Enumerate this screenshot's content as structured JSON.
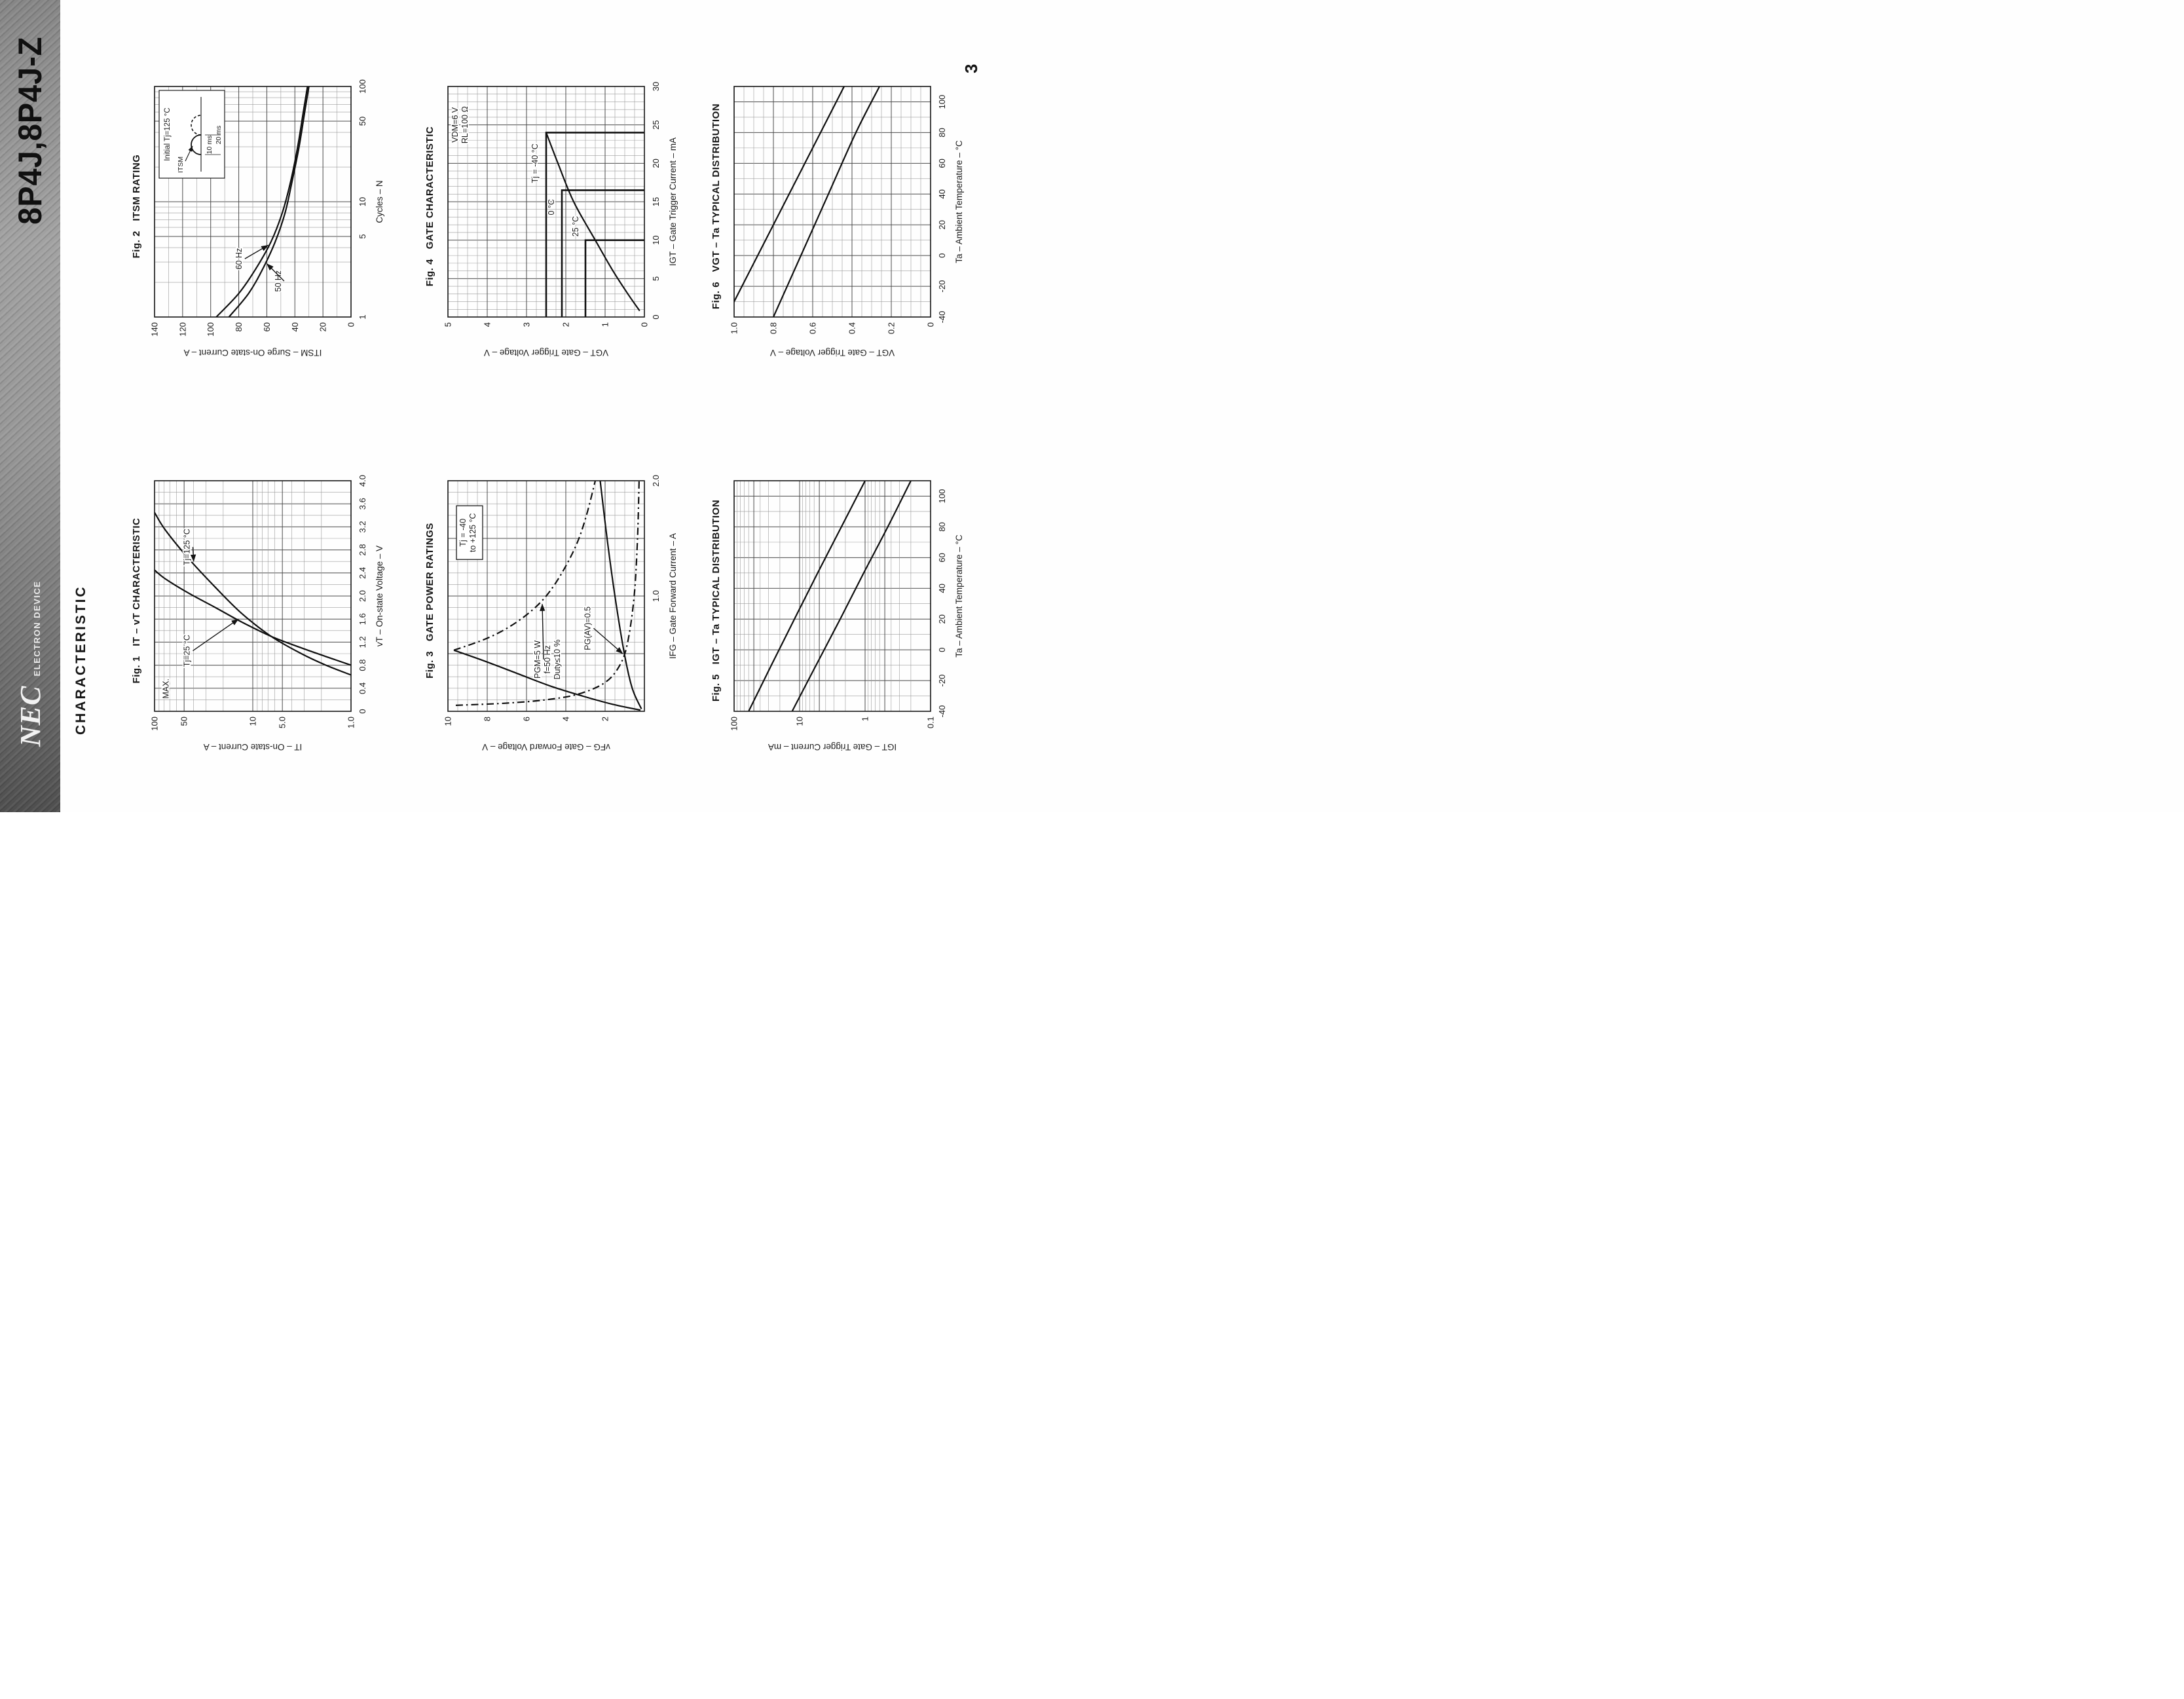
{
  "page": {
    "heading": "CHARACTERISTIC",
    "page_number": "3",
    "background": "#ffffff"
  },
  "header": {
    "brand": "NEC",
    "brand_sub": "ELECTRON DEVICE",
    "part_number": "8P4J,8P4J-Z",
    "strip_color": "#8a8a8a",
    "text_color": "#111111"
  },
  "chart_data": [
    {
      "fig": "Fig. 1",
      "title": "IT – vT CHARACTERISTIC",
      "type": "line",
      "x": {
        "label": "vT – On-state Voltage – V",
        "scale": "linear",
        "min": 0,
        "max": 4.0,
        "major": 0.4,
        "minor": 0.2,
        "ticks": [
          0,
          0.4,
          0.8,
          1.2,
          1.6,
          2.0,
          2.4,
          2.8,
          3.2,
          3.6,
          4.0
        ],
        "tick_labels": [
          "0",
          "0.4",
          "0.8",
          "1.2",
          "1.6",
          "2.0",
          "2.4",
          "2.8",
          "3.2",
          "3.6",
          "4.0"
        ]
      },
      "y": {
        "label": "IT – On-state Current – A",
        "scale": "log",
        "min": 1,
        "max": 100,
        "ticks": [
          1,
          5,
          10,
          50,
          100
        ],
        "tick_labels": [
          "1.0",
          "5.0",
          "10",
          "50",
          "100"
        ]
      },
      "series": [
        {
          "name": "Tj=25°C",
          "style": "solid",
          "points": [
            [
              0.8,
              1.0
            ],
            [
              0.95,
              1.8
            ],
            [
              1.1,
              3.2
            ],
            [
              1.3,
              6.5
            ],
            [
              1.55,
              13
            ],
            [
              1.8,
              24
            ],
            [
              2.05,
              45
            ],
            [
              2.3,
              78
            ],
            [
              2.45,
              100
            ]
          ]
        },
        {
          "name": "Tj=125°C",
          "style": "solid",
          "points": [
            [
              0.63,
              1.0
            ],
            [
              0.8,
              1.8
            ],
            [
              1.0,
              3.2
            ],
            [
              1.3,
              6.5
            ],
            [
              1.7,
              13
            ],
            [
              2.15,
              24
            ],
            [
              2.65,
              45
            ],
            [
              3.15,
              78
            ],
            [
              3.45,
              100
            ]
          ]
        }
      ],
      "annotations": [
        {
          "text": "MAX.",
          "x": 0.22,
          "y": 72,
          "anchor": "start"
        },
        {
          "text": "Tj=25 °C",
          "x": 1.05,
          "y": 44,
          "arrow_to": [
            1.6,
            14
          ]
        },
        {
          "text": "Tj=125 °C",
          "x": 2.85,
          "y": 44,
          "arrow_to": [
            2.6,
            40
          ]
        }
      ]
    },
    {
      "fig": "Fig. 2",
      "title": "ITSM RATING",
      "type": "line",
      "x": {
        "label": "Cycles – N",
        "scale": "log",
        "min": 1,
        "max": 100,
        "ticks": [
          1,
          5,
          10,
          50,
          100
        ],
        "tick_labels": [
          "1",
          "5",
          "10",
          "50",
          "100"
        ]
      },
      "y": {
        "label": "ITSM – Surge On-state Current – A",
        "scale": "linear",
        "min": 0,
        "max": 140,
        "major": 20,
        "minor": 10,
        "ticks": [
          0,
          20,
          40,
          60,
          80,
          100,
          120,
          140
        ],
        "tick_labels": [
          "0",
          "20",
          "40",
          "60",
          "80",
          "100",
          "120",
          "140"
        ]
      },
      "series": [
        {
          "name": "60 Hz",
          "style": "solid",
          "points": [
            [
              1,
              96
            ],
            [
              1.6,
              80
            ],
            [
              2.6,
              68
            ],
            [
              4.5,
              57
            ],
            [
              8,
              49
            ],
            [
              15,
              43
            ],
            [
              30,
              38
            ],
            [
              60,
              34
            ],
            [
              100,
              31
            ]
          ]
        },
        {
          "name": "50 Hz",
          "style": "solid",
          "points": [
            [
              1,
              87
            ],
            [
              1.6,
              73
            ],
            [
              2.6,
              63
            ],
            [
              4.5,
              54
            ],
            [
              8,
              47
            ],
            [
              15,
              42
            ],
            [
              30,
              37
            ],
            [
              60,
              33
            ],
            [
              100,
              30
            ]
          ]
        }
      ],
      "annotations": [
        {
          "text": "60 Hz",
          "x": 3.2,
          "y": 78,
          "arrow_to": [
            4.2,
            59
          ]
        },
        {
          "text": "50 Hz",
          "x": 2.05,
          "y": 50,
          "arrow_to": [
            2.9,
            60
          ]
        }
      ],
      "inset": {
        "title": "Initial Tj=125 °C",
        "peak_label": "ITSM",
        "pulse_width_label": "10 ms",
        "period_label": "20 ms"
      }
    },
    {
      "fig": "Fig. 3",
      "title": "GATE POWER RATINGS",
      "type": "line",
      "x": {
        "label": "IFG – Gate Forward Current – A",
        "scale": "linear",
        "min": 0,
        "max": 2.0,
        "major": 0.5,
        "minor": 0.1,
        "ticks": [
          1.0,
          2.0
        ],
        "tick_labels": [
          "1.0",
          "2.0"
        ]
      },
      "y": {
        "label": "vFG – Gate Forward Voltage – V",
        "scale": "linear",
        "min": 0,
        "max": 10,
        "major": 2,
        "minor": 0.5,
        "ticks": [
          2,
          4,
          6,
          8,
          10
        ],
        "tick_labels": [
          "2",
          "4",
          "6",
          "8",
          "10"
        ]
      },
      "series": [
        {
          "name": "PGM=5W limit",
          "style": "dashdot",
          "points": [
            [
              0.53,
              9.7
            ],
            [
              0.62,
              8.2
            ],
            [
              0.72,
              7.0
            ],
            [
              0.85,
              5.9
            ],
            [
              1.0,
              5.0
            ],
            [
              1.2,
              4.2
            ],
            [
              1.45,
              3.45
            ],
            [
              1.7,
              2.95
            ],
            [
              2.0,
              2.5
            ]
          ]
        },
        {
          "name": "PG(AV)=0.5W limit",
          "style": "dashdot",
          "points": [
            [
              0.052,
              9.6
            ],
            [
              0.07,
              7.1
            ],
            [
              0.1,
              5.0
            ],
            [
              0.15,
              3.35
            ],
            [
              0.25,
              2.0
            ],
            [
              0.4,
              1.25
            ],
            [
              0.6,
              0.85
            ],
            [
              1.0,
              0.52
            ],
            [
              1.5,
              0.35
            ],
            [
              2.0,
              0.27
            ]
          ]
        },
        {
          "name": "gate characteristic max",
          "style": "solid",
          "points": [
            [
              0.01,
              0.2
            ],
            [
              0.06,
              1.6
            ],
            [
              0.13,
              3.1
            ],
            [
              0.22,
              4.8
            ],
            [
              0.33,
              6.5
            ],
            [
              0.44,
              8.2
            ],
            [
              0.53,
              9.7
            ]
          ]
        },
        {
          "name": "gate characteristic min",
          "style": "solid",
          "points": [
            [
              0.02,
              0.15
            ],
            [
              0.2,
              0.62
            ],
            [
              0.5,
              1.02
            ],
            [
              1.0,
              1.5
            ],
            [
              1.5,
              1.9
            ],
            [
              2.0,
              2.25
            ]
          ]
        }
      ],
      "annotations": [
        {
          "lines": [
            "Tj = -40",
            "to +125 °C"
          ],
          "x": 1.55,
          "y": 9.1,
          "boxed": true
        },
        {
          "lines": [
            "PGM=5 W",
            "f=50 Hz",
            "Duty≤10 %"
          ],
          "x": 0.45,
          "y": 5.3,
          "arrow_to": [
            0.93,
            5.2
          ]
        },
        {
          "text": "PG(AV)=0.5",
          "x": 0.72,
          "y": 2.75,
          "arrow_to": [
            0.5,
            1.1
          ]
        }
      ]
    },
    {
      "fig": "Fig. 4",
      "title": "GATE CHARACTERISTIC",
      "type": "line",
      "x": {
        "label": "IGT – Gate Trigger Current – mA",
        "scale": "linear",
        "min": 0,
        "max": 30,
        "major": 5,
        "minor": 1,
        "ticks": [
          0,
          5,
          10,
          15,
          20,
          25,
          30
        ],
        "tick_labels": [
          "0",
          "5",
          "10",
          "15",
          "20",
          "25",
          "30"
        ]
      },
      "y": {
        "label": "VGT – Gate Trigger Voltage – V",
        "scale": "linear",
        "min": 0,
        "max": 5,
        "major": 1,
        "minor": 0.25,
        "ticks": [
          0,
          1,
          2,
          3,
          4,
          5
        ],
        "tick_labels": [
          "0",
          "1",
          "2",
          "3",
          "4",
          "5"
        ]
      },
      "regions": [
        {
          "label": "Tj = -40 °C",
          "i": 24,
          "v": 2.5,
          "label_at": [
            20,
            2.72
          ]
        },
        {
          "label": "0 °C",
          "i": 16.5,
          "v": 2.1,
          "label_at": [
            14.3,
            2.3
          ]
        },
        {
          "label": "25 °C",
          "i": 10,
          "v": 1.5,
          "label_at": [
            11.8,
            1.68
          ]
        }
      ],
      "series": [
        {
          "name": "gate trigger characteristic",
          "style": "solid",
          "points": [
            [
              0.8,
              0.12
            ],
            [
              3,
              0.42
            ],
            [
              6,
              0.8
            ],
            [
              10,
              1.25
            ],
            [
              15,
              1.8
            ],
            [
              20,
              2.2
            ],
            [
              24,
              2.5
            ]
          ]
        }
      ],
      "annotations": [
        {
          "lines": [
            "VDM=6 V",
            "RL=100 Ω"
          ],
          "x": 25,
          "y": 4.75
        }
      ]
    },
    {
      "fig": "Fig. 5",
      "title": "IGT – Ta TYPICAL DISTRIBUTION",
      "type": "line",
      "x": {
        "label": "Ta – Ambient Temperature – °C",
        "scale": "linear",
        "min": -40,
        "max": 110,
        "major": 20,
        "minor": 10,
        "ticks": [
          -40,
          -20,
          0,
          20,
          40,
          60,
          80,
          100
        ],
        "tick_labels": [
          "-40",
          "-20",
          "0",
          "20",
          "40",
          "60",
          "80",
          "100"
        ]
      },
      "y": {
        "label": "IGT – Gate Trigger Current – mA",
        "scale": "log",
        "min": 0.1,
        "max": 100,
        "ticks": [
          0.1,
          1,
          10,
          100
        ],
        "tick_labels": [
          "0.1",
          "1",
          "10",
          "100"
        ]
      },
      "series": [
        {
          "name": "distribution max",
          "style": "solid",
          "points": [
            [
              -40,
              60
            ],
            [
              -10,
              27
            ],
            [
              20,
              12
            ],
            [
              50,
              5.3
            ],
            [
              80,
              2.3
            ],
            [
              110,
              1.0
            ]
          ]
        },
        {
          "name": "distribution min",
          "style": "solid",
          "points": [
            [
              -40,
              13
            ],
            [
              -10,
              5.6
            ],
            [
              20,
              2.4
            ],
            [
              50,
              1.05
            ],
            [
              80,
              0.45
            ],
            [
              110,
              0.2
            ]
          ]
        }
      ]
    },
    {
      "fig": "Fig. 6",
      "title": "VGT – Ta TYPICAL DISTRIBUTION",
      "type": "line",
      "x": {
        "label": "Ta – Ambient Temperature – °C",
        "scale": "linear",
        "min": -40,
        "max": 110,
        "major": 20,
        "minor": 10,
        "ticks": [
          -40,
          -20,
          0,
          20,
          40,
          60,
          80,
          100
        ],
        "tick_labels": [
          "-40",
          "-20",
          "0",
          "20",
          "40",
          "60",
          "80",
          "100"
        ]
      },
      "y": {
        "label": "VGT – Gate Trigger Voltage – V",
        "scale": "linear",
        "min": 0,
        "max": 1.0,
        "major": 0.2,
        "minor": 0.05,
        "ticks": [
          0,
          0.2,
          0.4,
          0.6,
          0.8,
          1.0
        ],
        "tick_labels": [
          "0",
          "0.2",
          "0.4",
          "0.6",
          "0.8",
          "1.0"
        ]
      },
      "series": [
        {
          "name": "distribution max",
          "style": "solid",
          "points": [
            [
              -40,
              1.04
            ],
            [
              0,
              0.88
            ],
            [
              40,
              0.72
            ],
            [
              80,
              0.56
            ],
            [
              110,
              0.44
            ]
          ]
        },
        {
          "name": "distribution min",
          "style": "solid",
          "points": [
            [
              -40,
              0.8
            ],
            [
              0,
              0.66
            ],
            [
              40,
              0.52
            ],
            [
              80,
              0.38
            ],
            [
              110,
              0.26
            ]
          ]
        }
      ]
    }
  ]
}
